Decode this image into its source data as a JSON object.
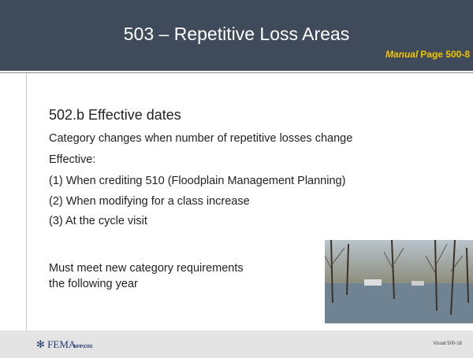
{
  "header": {
    "title": "503 – Repetitive Loss Areas",
    "reference": {
      "italic": "Manual",
      "text": "Page 500-8"
    }
  },
  "body": {
    "heading": "502.b Effective dates",
    "items": [
      "Category changes when number of repetitive losses change",
      "Effective:",
      "(1) When crediting 510 (Floodplain Management Planning)",
      "(2) When modifying for a class increase",
      "(3) At the cycle visit"
    ],
    "closing": [
      "Must meet new category requirements",
      "the following year"
    ]
  },
  "footer": {
    "logo": "FEMA",
    "logo2": "NFIP|CRS",
    "slide_number": "Visual 500-18"
  }
}
